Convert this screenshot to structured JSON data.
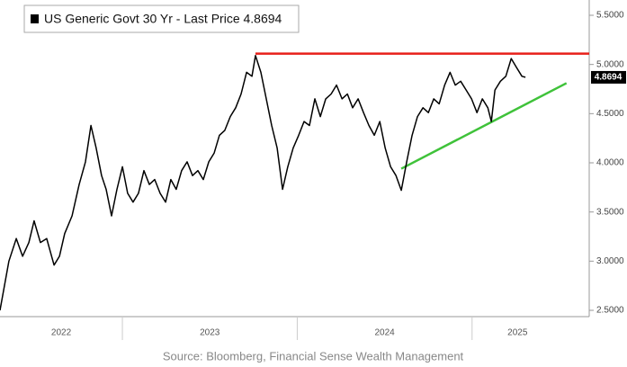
{
  "chart_data": {
    "type": "line",
    "series": [
      {
        "name": "US Generic Govt 30 Yr - Last Price 4.8694",
        "color": "#000000",
        "x": [
          2022.3,
          2022.351,
          2022.393,
          2022.429,
          2022.465,
          2022.495,
          2022.531,
          2022.567,
          2022.609,
          2022.64,
          2022.67,
          2022.712,
          2022.753,
          2022.789,
          2022.82,
          2022.85,
          2022.881,
          2022.907,
          2022.938,
          2022.969,
          2023.0,
          2023.03,
          2023.061,
          2023.092,
          2023.123,
          2023.154,
          2023.185,
          2023.216,
          2023.247,
          2023.277,
          2023.308,
          2023.339,
          2023.37,
          2023.401,
          2023.432,
          2023.463,
          2023.494,
          2023.525,
          2023.555,
          2023.586,
          2023.617,
          2023.648,
          2023.679,
          2023.71,
          2023.741,
          2023.761,
          2023.792,
          2023.823,
          2023.854,
          2023.885,
          2023.916,
          2023.946,
          2023.977,
          2024.008,
          2024.039,
          2024.07,
          2024.101,
          2024.132,
          2024.163,
          2024.194,
          2024.225,
          2024.256,
          2024.287,
          2024.317,
          2024.348,
          2024.379,
          2024.41,
          2024.441,
          2024.472,
          2024.503,
          2024.534,
          2024.565,
          2024.595,
          2024.626,
          2024.657,
          2024.688,
          2024.719,
          2024.75,
          2024.781,
          2024.812,
          2024.843,
          2024.874,
          2024.904,
          2024.935,
          2024.966,
          2024.997,
          2025.028,
          2025.059,
          2025.09,
          2025.11,
          2025.131,
          2025.162,
          2025.193,
          2025.224,
          2025.254,
          2025.285,
          2025.305
        ],
        "values": [
          2.5,
          3.0,
          3.23,
          3.05,
          3.19,
          3.41,
          3.19,
          3.23,
          2.96,
          3.05,
          3.28,
          3.46,
          3.78,
          4.01,
          4.38,
          4.15,
          3.87,
          3.73,
          3.46,
          3.73,
          3.96,
          3.69,
          3.6,
          3.69,
          3.92,
          3.78,
          3.83,
          3.69,
          3.6,
          3.83,
          3.73,
          3.92,
          4.01,
          3.87,
          3.92,
          3.83,
          4.01,
          4.1,
          4.28,
          4.33,
          4.47,
          4.56,
          4.7,
          4.92,
          4.88,
          5.09,
          4.92,
          4.65,
          4.38,
          4.15,
          3.73,
          3.96,
          4.15,
          4.28,
          4.42,
          4.38,
          4.65,
          4.47,
          4.65,
          4.7,
          4.79,
          4.65,
          4.7,
          4.56,
          4.65,
          4.51,
          4.38,
          4.28,
          4.42,
          4.15,
          3.96,
          3.87,
          3.72,
          4.01,
          4.28,
          4.47,
          4.56,
          4.51,
          4.65,
          4.6,
          4.79,
          4.92,
          4.79,
          4.83,
          4.74,
          4.65,
          4.51,
          4.65,
          4.56,
          4.42,
          4.74,
          4.83,
          4.88,
          5.06,
          4.97,
          4.88,
          4.87
        ]
      }
    ],
    "last_price": 4.8694,
    "last_price_label": "4.8694",
    "annotation_lines": [
      {
        "color": "#e8201a",
        "x": [
          2023.761,
          2025.67
        ],
        "values": [
          5.11,
          5.11
        ]
      },
      {
        "color": "#3fc23a",
        "x": [
          2024.595,
          2025.54
        ],
        "values": [
          3.94,
          4.81
        ]
      }
    ],
    "xlim": [
      2022.3,
      2025.67
    ],
    "xticks": [
      {
        "value": 2022.65,
        "label": "2022"
      },
      {
        "value": 2023.5,
        "label": "2023"
      },
      {
        "value": 2024.5,
        "label": "2024"
      },
      {
        "value": 2025.26,
        "label": "2025"
      }
    ],
    "year_boundaries": [
      2023,
      2024,
      2025
    ],
    "ylim": [
      2.5,
      5.5
    ],
    "yticks": [
      {
        "value": 2.5,
        "label": "2.5000"
      },
      {
        "value": 3.0,
        "label": "3.0000"
      },
      {
        "value": 3.5,
        "label": "3.5000"
      },
      {
        "value": 4.0,
        "label": "4.0000"
      },
      {
        "value": 4.5,
        "label": "4.5000"
      },
      {
        "value": 5.0,
        "label": "5.0000"
      },
      {
        "value": 5.5,
        "label": "5.5000"
      }
    ],
    "source": "Source: Bloomberg, Financial Sense Wealth Management"
  }
}
